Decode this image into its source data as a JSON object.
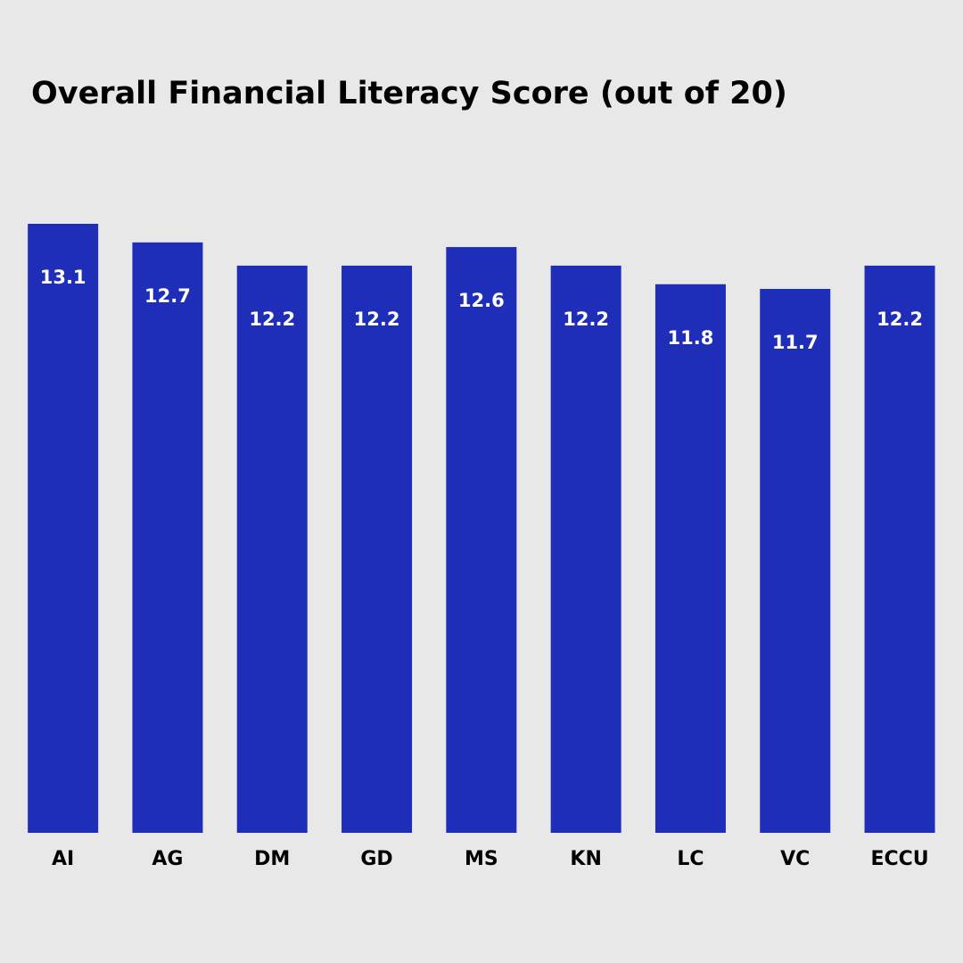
{
  "chart_data": {
    "type": "bar",
    "title": "Overall Financial Literacy Score (out of 20)",
    "categories": [
      "AI",
      "AG",
      "DM",
      "GD",
      "MS",
      "KN",
      "LC",
      "VC",
      "ECCU"
    ],
    "values": [
      13.1,
      12.7,
      12.2,
      12.2,
      12.6,
      12.2,
      11.8,
      11.7,
      12.2
    ],
    "color": "#1f2eb8"
  }
}
